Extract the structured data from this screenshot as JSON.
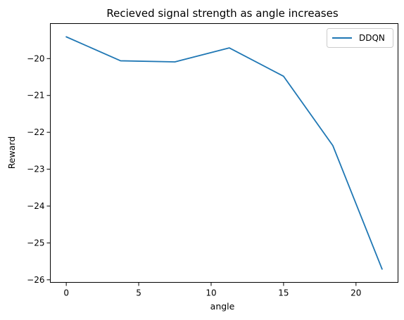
{
  "chart_data": {
    "type": "line",
    "title": "Recieved signal strength as angle increases",
    "xlabel": "angle",
    "ylabel": "Reward",
    "xlim": [
      -1.1,
      22.9
    ],
    "ylim": [
      -26.07,
      -19.05
    ],
    "xticks": [
      0,
      5,
      10,
      15,
      20
    ],
    "yticks": [
      -20,
      -21,
      -22,
      -23,
      -24,
      -25,
      -26
    ],
    "xtick_labels": [
      "0",
      "5",
      "10",
      "15",
      "20"
    ],
    "ytick_labels": [
      "−20",
      "−21",
      "−22",
      "−23",
      "−24",
      "−25",
      "−26"
    ],
    "grid": false,
    "legend_position": "top-right",
    "series": [
      {
        "name": "DDQN",
        "color": "#1f77b4",
        "x": [
          0,
          3.75,
          7.5,
          11.25,
          15.0,
          18.4,
          21.8
        ],
        "y": [
          -19.41,
          -20.06,
          -20.09,
          -19.71,
          -20.48,
          -22.36,
          -25.71
        ]
      }
    ]
  }
}
